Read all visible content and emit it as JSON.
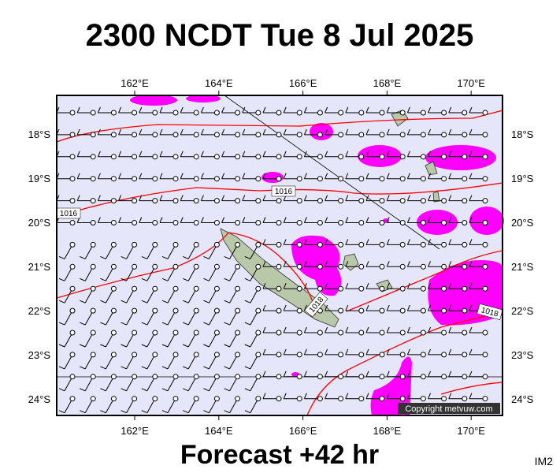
{
  "map": {
    "title": "2300 NCDT Tue 8 Jul 2025",
    "lon_ticks": [
      "162°E",
      "164°E",
      "166°E",
      "168°E",
      "170°E"
    ],
    "lat_ticks": [
      "18°S",
      "19°S",
      "20°S",
      "21°S",
      "22°S",
      "23°S",
      "24°S"
    ],
    "isobar_labels": [
      "1016",
      "1016",
      "1018",
      "1018"
    ],
    "copyright": "Copyright metvuw.com",
    "footer": "Forecast +42 hr",
    "corner_label": "IM2"
  }
}
